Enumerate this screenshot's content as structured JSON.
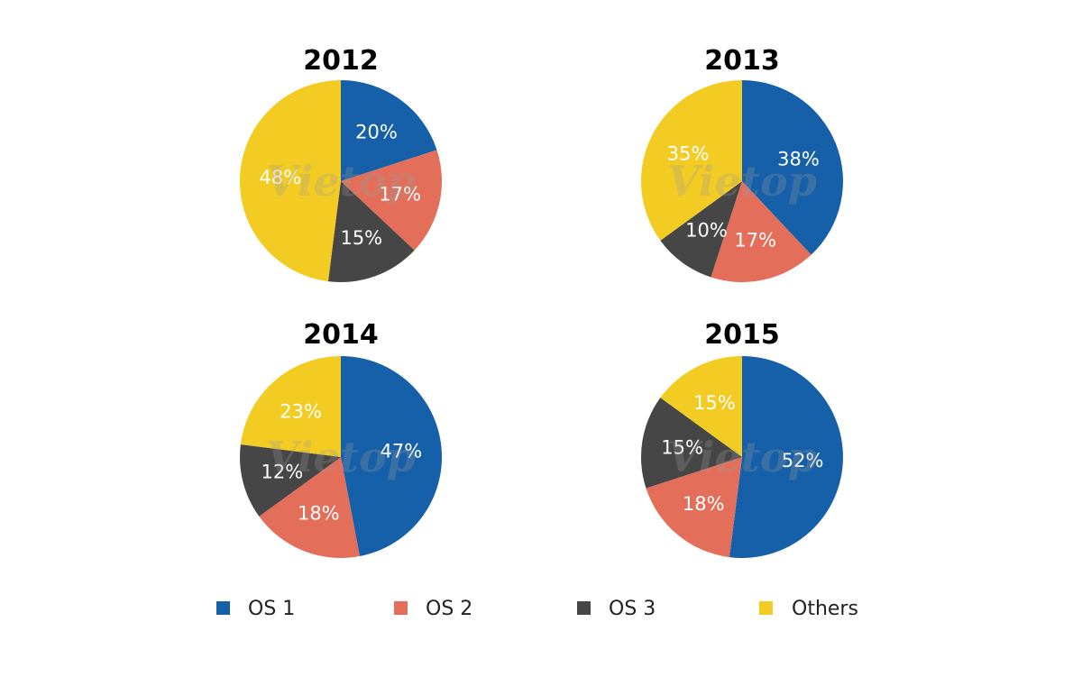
{
  "chart_data": [
    {
      "type": "pie",
      "title": "2012",
      "series": [
        {
          "name": "OS 1",
          "value": 20,
          "label": "20%"
        },
        {
          "name": "OS 2",
          "value": 17,
          "label": "17%"
        },
        {
          "name": "OS 3",
          "value": 15,
          "label": "15%"
        },
        {
          "name": "Others",
          "value": 48,
          "label": "48%"
        }
      ]
    },
    {
      "type": "pie",
      "title": "2013",
      "series": [
        {
          "name": "OS 1",
          "value": 38,
          "label": "38%"
        },
        {
          "name": "OS 2",
          "value": 17,
          "label": "17%"
        },
        {
          "name": "OS 3",
          "value": 10,
          "label": "10%"
        },
        {
          "name": "Others",
          "value": 35,
          "label": "35%"
        }
      ]
    },
    {
      "type": "pie",
      "title": "2014",
      "series": [
        {
          "name": "OS 1",
          "value": 47,
          "label": "47%"
        },
        {
          "name": "OS 2",
          "value": 18,
          "label": "18%"
        },
        {
          "name": "OS 3",
          "value": 12,
          "label": "12%"
        },
        {
          "name": "Others",
          "value": 23,
          "label": "23%"
        }
      ]
    },
    {
      "type": "pie",
      "title": "2015",
      "series": [
        {
          "name": "OS 1",
          "value": 52,
          "label": "52%"
        },
        {
          "name": "OS 2",
          "value": 18,
          "label": "18%"
        },
        {
          "name": "OS 3",
          "value": 15,
          "label": "15%"
        },
        {
          "name": "Others",
          "value": 15,
          "label": "15%"
        }
      ]
    }
  ],
  "legend": {
    "placement": "bottom",
    "items": [
      {
        "name": "OS 1",
        "color": "#1660aa"
      },
      {
        "name": "OS 2",
        "color": "#e36f5b"
      },
      {
        "name": "OS 3",
        "color": "#464646"
      },
      {
        "name": "Others",
        "color": "#f2cb23"
      }
    ]
  },
  "watermark": "Vietop"
}
